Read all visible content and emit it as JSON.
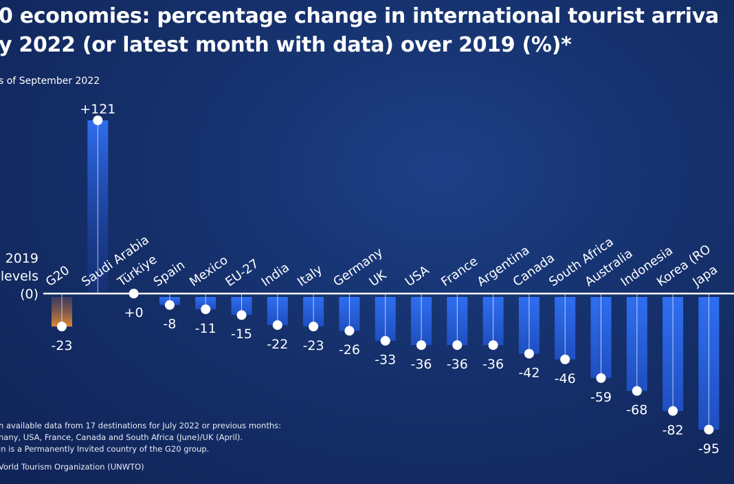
{
  "title_line1": "0 economies: percentage change in international tourist arriva",
  "title_line2": "y 2022 (or latest month with data) over 2019 (%)*",
  "subtitle": "s of September 2022",
  "baseline_label": [
    "2019",
    "levels",
    "(0)"
  ],
  "notes": [
    "n available data from 17 destinations for July 2022 or previous months:",
    "nany, USA, France, Canada and South Africa (June)/UK (April).",
    "in is a Permanently Invited country of the G20 group."
  ],
  "source": "Vorld Tourism Organization (UNWTO)",
  "colors": {
    "background": "#15306b",
    "bar": "#2f66e0",
    "g20_bar": "#d98a3a",
    "axis": "#ffffff"
  },
  "chart_data": {
    "type": "bar",
    "categories": [
      "G20",
      "Saudi Arabia",
      "Türkiye",
      "Spain",
      "Mexico",
      "EU-27",
      "India",
      "Italy",
      "Germany",
      "UK",
      "USA",
      "France",
      "Argentina",
      "Canada",
      "South Africa",
      "Australia",
      "Indonesia",
      "Korea (RO",
      "Japa"
    ],
    "values": [
      -23,
      121,
      0,
      -8,
      -11,
      -15,
      -22,
      -23,
      -26,
      -33,
      -36,
      -36,
      -36,
      -42,
      -46,
      -59,
      -68,
      -82,
      -95
    ],
    "value_labels": [
      "-23",
      "+121",
      "+0",
      "-8",
      "-11",
      "-15",
      "-22",
      "-23",
      "-26",
      "-33",
      "-36",
      "-36",
      "-36",
      "-42",
      "-46",
      "-59",
      "-68",
      "-82",
      "-95"
    ],
    "highlight": "G20",
    "ylim": [
      -95,
      121
    ],
    "grid": false,
    "title": "0 economies: percentage change in international tourist arriva y 2022 (or latest month with data) over 2019 (%)*"
  }
}
